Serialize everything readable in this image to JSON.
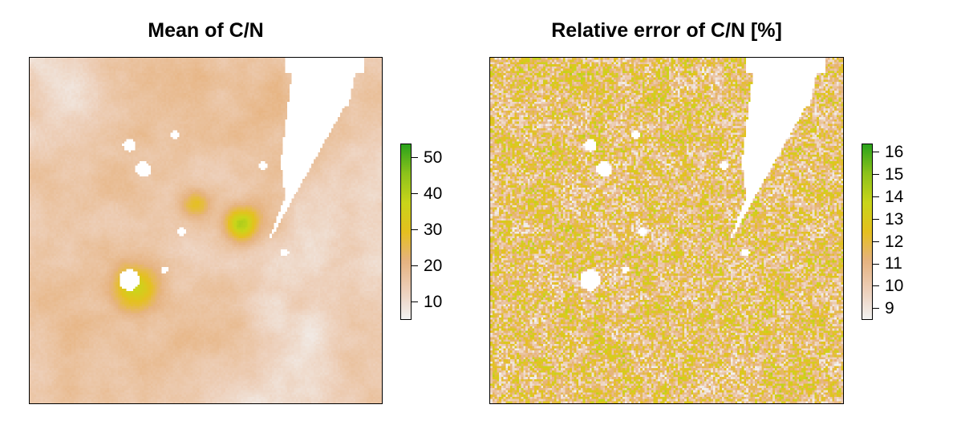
{
  "panels": [
    {
      "title": "Mean of C/N",
      "legend": {
        "min": 5,
        "max": 54,
        "ticks": [
          10,
          20,
          30,
          40,
          50
        ],
        "tick_labels": [
          "10",
          "20",
          "30",
          "40",
          "50"
        ]
      }
    },
    {
      "title": "Relative error of C/N [%]",
      "legend": {
        "min": 8.5,
        "max": 16.4,
        "ticks": [
          9,
          10,
          11,
          12,
          13,
          14,
          15,
          16
        ],
        "tick_labels": [
          "9",
          "10",
          "11",
          "12",
          "13",
          "14",
          "15",
          "16"
        ]
      }
    }
  ],
  "colors": {
    "palette": [
      "#F2F2F2",
      "#EDCFB9",
      "#E6B380",
      "#E5C01F",
      "#CAD51A",
      "#8EC31C",
      "#2CA41B"
    ],
    "no_data": "#FFFFFF",
    "frame": "#000000"
  }
}
